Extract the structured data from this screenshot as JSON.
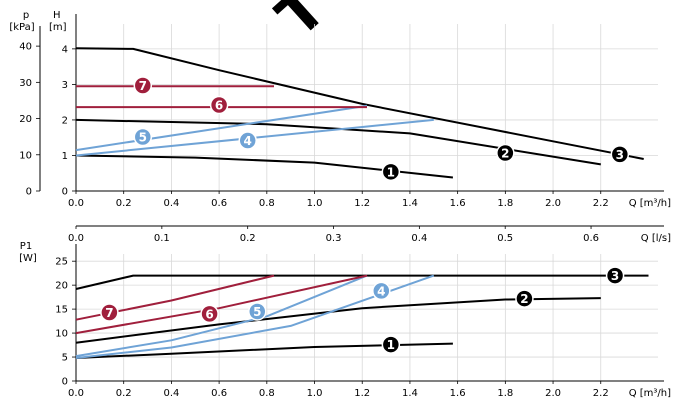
{
  "watermark": "TWWW",
  "chart_data": [
    {
      "id": "head",
      "type": "line",
      "left_axis_title": "p",
      "left_axis_unit": "[kPa]",
      "left_ticks": [
        0,
        10,
        20,
        30,
        40
      ],
      "right_axis_title": "H",
      "right_axis_unit": "[m]",
      "ylim": [
        0,
        4.7
      ],
      "yticks": [
        0,
        1,
        2,
        3,
        4
      ],
      "xlabel": "Q [m³/h]",
      "xlim": [
        0,
        2.44
      ],
      "xticks": [
        0.0,
        0.2,
        0.4,
        0.6,
        0.8,
        1.0,
        1.2,
        1.4,
        1.6,
        1.8,
        2.0,
        2.2
      ],
      "series": [
        {
          "name": "1",
          "color": "#000000",
          "label_at": [
            1.32,
            0.54
          ],
          "points": [
            [
              0.0,
              1.0
            ],
            [
              0.5,
              0.94
            ],
            [
              1.0,
              0.8
            ],
            [
              1.58,
              0.38
            ]
          ]
        },
        {
          "name": "2",
          "color": "#000000",
          "label_at": [
            1.8,
            1.07
          ],
          "points": [
            [
              0.0,
              2.0
            ],
            [
              0.8,
              1.88
            ],
            [
              1.4,
              1.62
            ],
            [
              2.2,
              0.75
            ]
          ]
        },
        {
          "name": "3",
          "color": "#000000",
          "label_at": [
            2.28,
            1.03
          ],
          "points": [
            [
              0.0,
              4.02
            ],
            [
              0.24,
              4.0
            ],
            [
              0.6,
              3.4
            ],
            [
              1.2,
              2.45
            ],
            [
              2.0,
              1.4
            ],
            [
              2.38,
              0.9
            ]
          ]
        },
        {
          "name": "4",
          "color": "#6fa3d6",
          "label_at": [
            0.72,
            1.42
          ],
          "points": [
            [
              0.0,
              1.0
            ],
            [
              1.5,
              2.0
            ]
          ]
        },
        {
          "name": "5",
          "color": "#6fa3d6",
          "label_at": [
            0.28,
            1.52
          ],
          "points": [
            [
              0.0,
              1.15
            ],
            [
              1.22,
              2.4
            ]
          ]
        },
        {
          "name": "6",
          "color": "#a01f3c",
          "label_at": [
            0.6,
            2.42
          ],
          "points": [
            [
              0.0,
              2.36
            ],
            [
              1.22,
              2.36
            ]
          ]
        },
        {
          "name": "7",
          "color": "#a01f3c",
          "label_at": [
            0.28,
            2.97
          ],
          "points": [
            [
              0.0,
              2.95
            ],
            [
              0.83,
              2.95
            ]
          ]
        }
      ]
    },
    {
      "id": "flow",
      "type": "axis",
      "xlabel": "Q [l/s]",
      "xlim": [
        0,
        0.678
      ],
      "xticks": [
        0.0,
        0.1,
        0.2,
        0.3,
        0.4,
        0.5,
        0.6
      ]
    },
    {
      "id": "power",
      "type": "line",
      "ylabel": "P1",
      "yunit": "[W]",
      "ylim": [
        0,
        26.5
      ],
      "yticks": [
        0,
        5,
        10,
        15,
        20,
        25
      ],
      "xlabel": "Q [m³/h]",
      "xlim": [
        0,
        2.44
      ],
      "xticks": [
        0.0,
        0.2,
        0.4,
        0.6,
        0.8,
        1.0,
        1.2,
        1.4,
        1.6,
        1.8,
        2.0,
        2.2
      ],
      "series": [
        {
          "name": "1",
          "color": "#000000",
          "label_at": [
            1.32,
            7.6
          ],
          "points": [
            [
              0.0,
              4.8
            ],
            [
              0.4,
              5.7
            ],
            [
              1.0,
              7.1
            ],
            [
              1.58,
              7.8
            ]
          ]
        },
        {
          "name": "2",
          "color": "#000000",
          "label_at": [
            1.88,
            17.2
          ],
          "points": [
            [
              0.0,
              8.0
            ],
            [
              0.6,
              11.8
            ],
            [
              1.2,
              15.2
            ],
            [
              1.8,
              17.0
            ],
            [
              2.2,
              17.3
            ]
          ]
        },
        {
          "name": "3",
          "color": "#000000",
          "label_at": [
            2.26,
            22.0
          ],
          "points": [
            [
              0.0,
              19.2
            ],
            [
              0.24,
              22.0
            ],
            [
              2.4,
              22.0
            ]
          ]
        },
        {
          "name": "4",
          "color": "#6fa3d6",
          "label_at": [
            1.28,
            18.8
          ],
          "points": [
            [
              0.0,
              4.8
            ],
            [
              0.4,
              7.0
            ],
            [
              0.9,
              11.5
            ],
            [
              1.5,
              22.0
            ]
          ]
        },
        {
          "name": "5",
          "color": "#6fa3d6",
          "label_at": [
            0.76,
            14.5
          ],
          "points": [
            [
              0.0,
              5.2
            ],
            [
              0.4,
              8.5
            ],
            [
              0.8,
              13.5
            ],
            [
              1.22,
              22.0
            ]
          ]
        },
        {
          "name": "6",
          "color": "#a01f3c",
          "label_at": [
            0.56,
            14.0
          ],
          "points": [
            [
              0.0,
              10.0
            ],
            [
              0.6,
              15.2
            ],
            [
              1.22,
              22.0
            ]
          ]
        },
        {
          "name": "7",
          "color": "#a01f3c",
          "label_at": [
            0.14,
            14.3
          ],
          "points": [
            [
              0.0,
              12.8
            ],
            [
              0.4,
              16.8
            ],
            [
              0.83,
              22.0
            ]
          ]
        }
      ]
    }
  ]
}
